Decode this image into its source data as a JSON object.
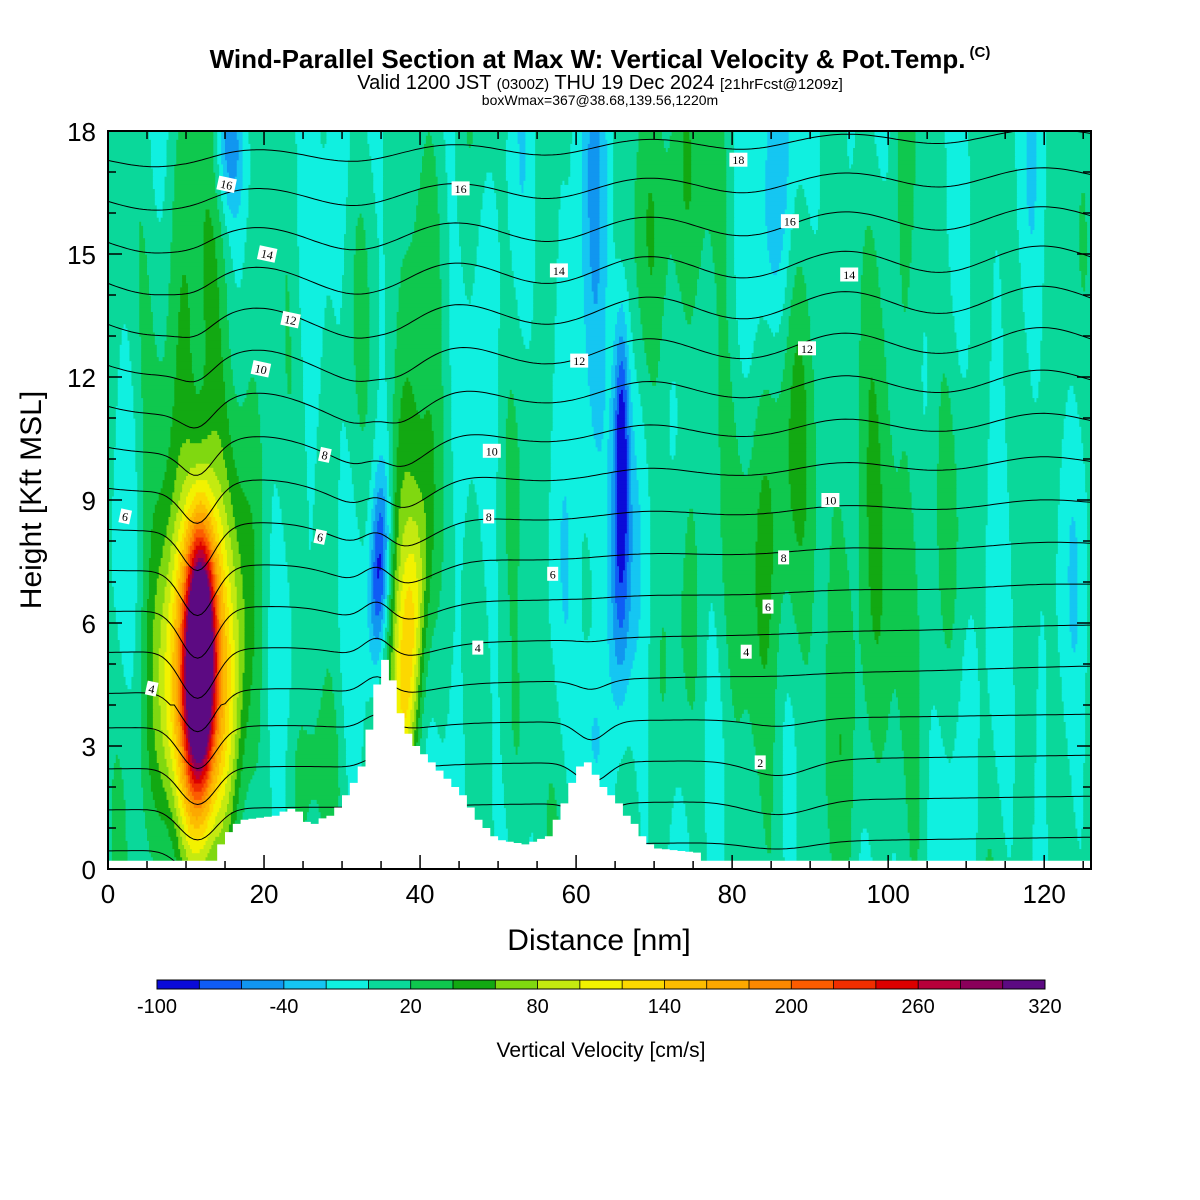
{
  "header": {
    "title": "Wind-Parallel Section at Max W: Vertical Velocity & Pot.Temp.",
    "copyright": "(C)",
    "valid_prefix": "Valid 1200 JST",
    "valid_utc": "(0300Z)",
    "valid_date": "THU 19 Dec 2024",
    "forecast": "[21hrFcst@1209z]",
    "boxinfo": "boxWmax=367@38.68,139.56,1220m"
  },
  "chart_data": {
    "type": "heatmap",
    "xlabel": "Distance [nm]",
    "ylabel": "Height [Kft MSL]",
    "xlim": [
      0,
      126
    ],
    "ylim": [
      0,
      18
    ],
    "x_ticks": [
      0,
      20,
      40,
      60,
      80,
      100,
      120
    ],
    "y_ticks": [
      0,
      3,
      6,
      9,
      12,
      15,
      18
    ],
    "colorbar": {
      "label": "Vertical Velocity [cm/s]",
      "tick_labels": [
        "-100",
        "-40",
        "20",
        "80",
        "140",
        "200",
        "260",
        "320"
      ],
      "levels": [
        -100,
        -80,
        -60,
        -40,
        -20,
        0,
        20,
        40,
        60,
        80,
        100,
        120,
        140,
        160,
        180,
        200,
        220,
        240,
        260,
        280,
        300,
        320,
        340
      ],
      "colors": [
        "#0b0bd8",
        "#0f5cf5",
        "#1196f0",
        "#15c6f2",
        "#10f0e0",
        "#0ad89a",
        "#0fc84e",
        "#12a912",
        "#80d810",
        "#c4ea10",
        "#f2f200",
        "#fcd800",
        "#fcbc00",
        "#fca800",
        "#fc8800",
        "#fc5c00",
        "#f02e00",
        "#dc0000",
        "#b8003a",
        "#8a005a",
        "#5c0a82"
      ]
    },
    "terrain_profile": [
      [
        0,
        0.2
      ],
      [
        13.5,
        0.2
      ],
      [
        14,
        0.6
      ],
      [
        15,
        0.9
      ],
      [
        16,
        1.1
      ],
      [
        17,
        1.2
      ],
      [
        21,
        1.3
      ],
      [
        22,
        1.4
      ],
      [
        23.5,
        1.5
      ],
      [
        24.5,
        1.3
      ],
      [
        25.5,
        1.0
      ],
      [
        26.5,
        1.2
      ],
      [
        28,
        1.3
      ],
      [
        29,
        1.5
      ],
      [
        30,
        1.8
      ],
      [
        31,
        2.1
      ],
      [
        32,
        2.5
      ],
      [
        33,
        3.4
      ],
      [
        34,
        4.5
      ],
      [
        35,
        5.1
      ],
      [
        36,
        4.6
      ],
      [
        37,
        3.8
      ],
      [
        38,
        3.3
      ],
      [
        39,
        3.0
      ],
      [
        40,
        2.8
      ],
      [
        41,
        2.6
      ],
      [
        42,
        2.4
      ],
      [
        43,
        2.2
      ],
      [
        44,
        2.0
      ],
      [
        45,
        1.8
      ],
      [
        46,
        1.5
      ],
      [
        47,
        1.2
      ],
      [
        48,
        1.0
      ],
      [
        49,
        0.8
      ],
      [
        50,
        0.7
      ],
      [
        53,
        0.6
      ],
      [
        56,
        0.8
      ],
      [
        57,
        1.2
      ],
      [
        58,
        1.6
      ],
      [
        59,
        2.1
      ],
      [
        60,
        2.5
      ],
      [
        61,
        2.6
      ],
      [
        62,
        2.3
      ],
      [
        63,
        2.0
      ],
      [
        64,
        1.8
      ],
      [
        65,
        1.6
      ],
      [
        66,
        1.3
      ],
      [
        67,
        1.1
      ],
      [
        68,
        0.8
      ],
      [
        69,
        0.6
      ],
      [
        70,
        0.5
      ],
      [
        75,
        0.4
      ],
      [
        76,
        0.2
      ],
      [
        126,
        0.2
      ]
    ],
    "updrafts": [
      {
        "x": 11.8,
        "z": 5.2,
        "peak": 367,
        "sx": 1.3,
        "sz": 2.2
      },
      {
        "x": 9.5,
        "z": 4.3,
        "peak": 120,
        "sx": 2.5,
        "sz": 2.8
      },
      {
        "x": 14.5,
        "z": 4.0,
        "peak": 95,
        "sx": 2.2,
        "sz": 3.0
      },
      {
        "x": 12,
        "z": 10.5,
        "peak": 45,
        "sx": 4.5,
        "sz": 5.0
      },
      {
        "x": 38.8,
        "z": 5.6,
        "peak": 105,
        "sx": 1.4,
        "sz": 2.8
      },
      {
        "x": 38,
        "z": 10,
        "peak": 55,
        "sx": 1.8,
        "sz": 4.5
      },
      {
        "x": 73,
        "z": 16,
        "peak": 40,
        "sx": 3,
        "sz": 3
      },
      {
        "x": 86,
        "z": 8,
        "peak": 35,
        "sx": 6,
        "sz": 4
      },
      {
        "x": 100,
        "z": 8,
        "peak": 30,
        "sx": 4,
        "sz": 5
      }
    ],
    "downdrafts": [
      {
        "x": 34.8,
        "z": 7.3,
        "peak": -95,
        "sx": 0.9,
        "sz": 1.7
      },
      {
        "x": 65.8,
        "z": 10.6,
        "peak": -90,
        "sx": 0.7,
        "sz": 2.2
      },
      {
        "x": 65.6,
        "z": 6.8,
        "peak": -60,
        "sx": 1.0,
        "sz": 2.4
      },
      {
        "x": 15.5,
        "z": 17.6,
        "peak": -55,
        "sx": 1.4,
        "sz": 1.2
      },
      {
        "x": 62,
        "z": 14,
        "peak": -35,
        "sx": 1.8,
        "sz": 4.5
      },
      {
        "x": 86,
        "z": 16.5,
        "peak": -30,
        "sx": 1.8,
        "sz": 2.8
      },
      {
        "x": 62,
        "z": 3.2,
        "peak": -28,
        "sx": 1.2,
        "sz": 1.5
      }
    ],
    "pot_temp_contours": {
      "levels": [
        -2,
        -1,
        0,
        1,
        2,
        3,
        4,
        5,
        6,
        7,
        8,
        9,
        10,
        11,
        12,
        13,
        14,
        15,
        16,
        17,
        18,
        19
      ],
      "labels": [
        {
          "text": "18",
          "x": 80.8,
          "z": 17.3
        },
        {
          "text": "16",
          "x": 15.2,
          "z": 16.7
        },
        {
          "text": "16",
          "x": 45.2,
          "z": 16.6
        },
        {
          "text": "16",
          "x": 87.4,
          "z": 15.8
        },
        {
          "text": "14",
          "x": 20.4,
          "z": 15.0
        },
        {
          "text": "14",
          "x": 57.8,
          "z": 14.6
        },
        {
          "text": "14",
          "x": 95.0,
          "z": 14.5
        },
        {
          "text": "12",
          "x": 23.4,
          "z": 13.4
        },
        {
          "text": "12",
          "x": 60.4,
          "z": 12.4
        },
        {
          "text": "12",
          "x": 89.6,
          "z": 12.7
        },
        {
          "text": "10",
          "x": 19.6,
          "z": 12.2
        },
        {
          "text": "10",
          "x": 49.2,
          "z": 10.2
        },
        {
          "text": "10",
          "x": 92.6,
          "z": 9.0
        },
        {
          "text": "8",
          "x": 27.8,
          "z": 10.1
        },
        {
          "text": "8",
          "x": 48.8,
          "z": 8.6
        },
        {
          "text": "8",
          "x": 86.6,
          "z": 7.6
        },
        {
          "text": "6",
          "x": 2.2,
          "z": 8.6
        },
        {
          "text": "6",
          "x": 27.2,
          "z": 8.1
        },
        {
          "text": "6",
          "x": 57.0,
          "z": 7.2
        },
        {
          "text": "6",
          "x": 84.6,
          "z": 6.4
        },
        {
          "text": "4",
          "x": 5.6,
          "z": 4.4
        },
        {
          "text": "4",
          "x": 47.4,
          "z": 5.4
        },
        {
          "text": "4",
          "x": 81.8,
          "z": 5.3
        },
        {
          "text": "2",
          "x": 83.6,
          "z": 2.6
        }
      ]
    }
  }
}
